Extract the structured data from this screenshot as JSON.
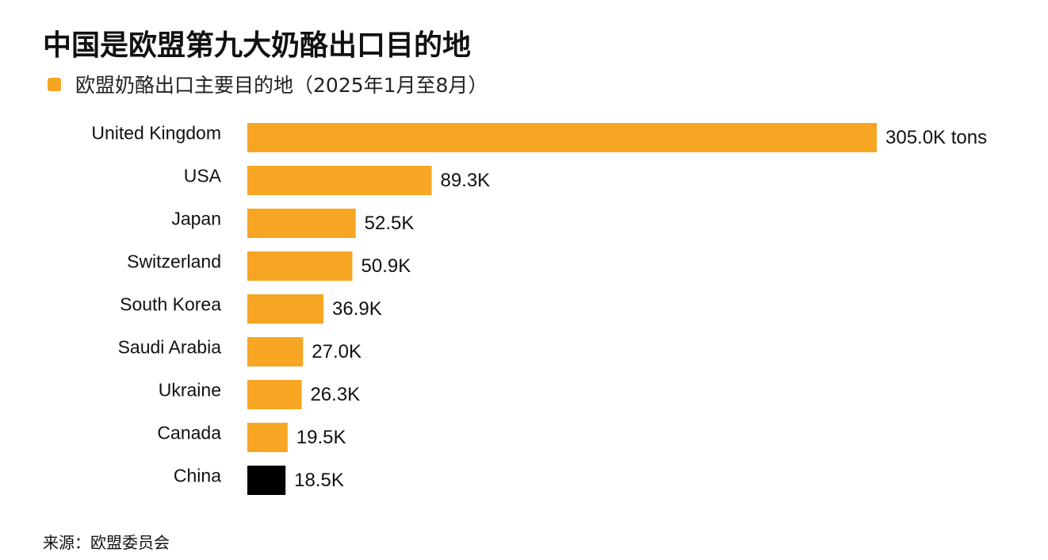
{
  "title": "中国是欧盟第九大奶酪出口目的地",
  "legend": "欧盟奶酪出口主要目的地（2025年1月至8月）",
  "source": "来源：欧盟委员会",
  "colors": {
    "bar": "#F6A623",
    "highlight": "#000000"
  },
  "chart_data": {
    "type": "bar",
    "orientation": "horizontal",
    "categories": [
      "United Kingdom",
      "USA",
      "Japan",
      "Switzerland",
      "South Korea",
      "Saudi Arabia",
      "Ukraine",
      "Canada",
      "China"
    ],
    "values": [
      305.0,
      89.3,
      52.5,
      50.9,
      36.9,
      27.0,
      26.3,
      19.5,
      18.5
    ],
    "value_labels": [
      "305.0K tons",
      "89.3K",
      "52.5K",
      "50.9K",
      "36.9K",
      "27.0K",
      "26.3K",
      "19.5K",
      "18.5K"
    ],
    "unit": "K tons",
    "highlighted_category": "China",
    "series": [
      {
        "name": "欧盟奶酪出口主要目的地（2025年1月至8月）"
      }
    ],
    "grid": false,
    "legend_position": "top-left"
  }
}
